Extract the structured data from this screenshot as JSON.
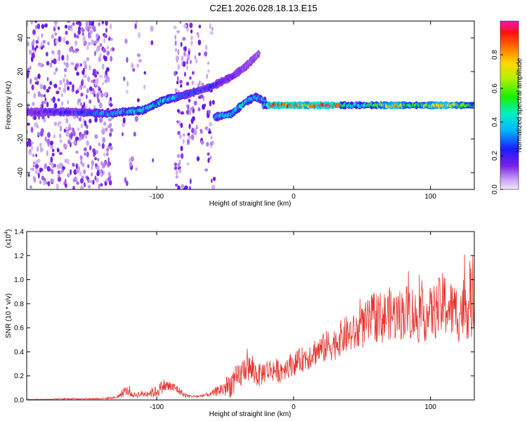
{
  "title": "C2E1.2026.028.18.13.E15",
  "colors": {
    "line": "#e8332d",
    "background": "#ffffff"
  },
  "chart_data": [
    {
      "type": "heatmap",
      "xlabel": "Height of straight line (km)",
      "ylabel": "Frequency (Hz)",
      "xlim": [
        -195,
        132
      ],
      "ylim": [
        -50,
        50
      ],
      "xticks": [
        -100,
        0,
        100
      ],
      "xtick_labels": [
        "-100",
        "0",
        "100"
      ],
      "yticks": [
        -40,
        -20,
        0,
        20,
        40
      ],
      "ytick_labels": [
        "-40",
        "-20",
        "0",
        "20",
        "40"
      ],
      "colorbar": {
        "label": "Normalized spectral amplitude",
        "range": [
          0,
          1
        ],
        "ticks": [
          0.0,
          0.2,
          0.4,
          0.6,
          0.8
        ],
        "tick_labels": [
          "0.0",
          "0.2",
          "0.4",
          "0.6",
          "0.8"
        ]
      },
      "noise_bands": [
        {
          "x": [
            -195,
            -132
          ],
          "density": 1.0
        },
        {
          "x": [
            -125,
            -108
          ],
          "density": 0.2
        },
        {
          "x": [
            -104,
            -100
          ],
          "density": 0.1
        },
        {
          "x": [
            -87,
            -73
          ],
          "density": 0.8
        },
        {
          "x": [
            -72,
            -58
          ],
          "density": 0.5
        }
      ],
      "ridge": [
        {
          "x": -195,
          "f": -4,
          "amp": 0.15
        },
        {
          "x": -160,
          "f": -4,
          "amp": 0.25
        },
        {
          "x": -135,
          "f": -5,
          "amp": 0.35
        },
        {
          "x": -125,
          "f": -4,
          "amp": 0.4
        },
        {
          "x": -110,
          "f": -3,
          "amp": 0.45
        },
        {
          "x": -95,
          "f": 3,
          "amp": 0.45
        },
        {
          "x": -80,
          "f": 6,
          "amp": 0.3
        },
        {
          "x": -60,
          "f": 11,
          "amp": 0.25
        },
        {
          "x": -55,
          "f": 13,
          "amp": 0.2
        },
        {
          "x": -45,
          "f": 17,
          "amp": 0.15
        },
        {
          "x": -35,
          "f": 23,
          "amp": 0.12
        },
        {
          "x": -25,
          "f": 31,
          "amp": 0.1
        }
      ],
      "ridge2": [
        {
          "x": -57,
          "f": -7,
          "amp": 0.4
        },
        {
          "x": -45,
          "f": -5,
          "amp": 0.45
        },
        {
          "x": -35,
          "f": 2,
          "amp": 0.45
        },
        {
          "x": -28,
          "f": 5,
          "amp": 0.4
        },
        {
          "x": -20,
          "f": 2,
          "amp": 0.4
        }
      ],
      "steady": [
        {
          "x": -22,
          "f": 0,
          "amp": 0.45
        },
        {
          "x": -20,
          "f": 0,
          "amp": 0.45
        },
        {
          "x": -18,
          "f": 0,
          "amp": 0.92
        },
        {
          "x": 0,
          "f": 0,
          "amp": 0.92
        },
        {
          "x": 10,
          "f": 0,
          "amp": 0.7
        },
        {
          "x": 15,
          "f": 0,
          "amp": 0.95
        },
        {
          "x": 33,
          "f": 0,
          "amp": 0.95
        },
        {
          "x": 35,
          "f": 0,
          "amp": 0.5
        },
        {
          "x": 50,
          "f": 0,
          "amp": 0.45
        },
        {
          "x": 75,
          "f": 0,
          "amp": 0.8
        },
        {
          "x": 85,
          "f": 0,
          "amp": 0.55
        },
        {
          "x": 110,
          "f": 0,
          "amp": 0.8
        },
        {
          "x": 132,
          "f": 0,
          "amp": 0.5
        }
      ]
    },
    {
      "type": "line",
      "xlabel": "Height of straight line (km)",
      "ylabel": "SNR (10 * v/v)",
      "y_multiplier": "(x10",
      "y_multiplier_exponent": "4",
      "xlim": [
        -195,
        132
      ],
      "ylim": [
        0,
        1.4
      ],
      "xticks": [
        -100,
        0,
        100
      ],
      "xtick_labels": [
        "-100",
        "0",
        "100"
      ],
      "yticks": [
        0.0,
        0.2,
        0.4,
        0.6,
        0.8,
        1.0,
        1.2,
        1.4
      ],
      "ytick_labels": [
        "0.0",
        "0.2",
        "0.4",
        "0.6",
        "0.8",
        "1.0",
        "1.2",
        "1.4"
      ],
      "series": [
        {
          "name": "SNR",
          "x": [
            -195,
            -180,
            -165,
            -150,
            -140,
            -130,
            -125,
            -122,
            -118,
            -110,
            -100,
            -95,
            -90,
            -85,
            -80,
            -75,
            -70,
            -60,
            -55,
            -50,
            -45,
            -40,
            -35,
            -30,
            -25,
            -20,
            -15,
            -10,
            -5,
            0,
            5,
            10,
            15,
            20,
            25,
            30,
            35,
            40,
            45,
            50,
            55,
            60,
            65,
            70,
            75,
            80,
            85,
            90,
            95,
            100,
            105,
            110,
            115,
            120,
            125,
            130,
            132
          ],
          "values": [
            0.005,
            0.005,
            0.01,
            0.01,
            0.012,
            0.02,
            0.05,
            0.08,
            0.04,
            0.05,
            0.07,
            0.12,
            0.11,
            0.09,
            0.04,
            0.03,
            0.03,
            0.05,
            0.08,
            0.1,
            0.14,
            0.18,
            0.28,
            0.24,
            0.2,
            0.25,
            0.25,
            0.24,
            0.28,
            0.3,
            0.33,
            0.36,
            0.4,
            0.42,
            0.45,
            0.47,
            0.52,
            0.55,
            0.55,
            0.6,
            0.65,
            0.7,
            0.68,
            0.72,
            0.7,
            0.72,
            0.75,
            0.68,
            0.7,
            0.72,
            0.75,
            0.8,
            0.75,
            0.72,
            0.78,
            0.8,
            0.85
          ],
          "noise_amplitude": [
            0.003,
            0.003,
            0.005,
            0.005,
            0.005,
            0.01,
            0.03,
            0.04,
            0.02,
            0.03,
            0.05,
            0.06,
            0.05,
            0.04,
            0.02,
            0.01,
            0.01,
            0.02,
            0.05,
            0.08,
            0.12,
            0.12,
            0.12,
            0.12,
            0.1,
            0.1,
            0.1,
            0.1,
            0.1,
            0.1,
            0.1,
            0.12,
            0.12,
            0.12,
            0.14,
            0.14,
            0.15,
            0.16,
            0.16,
            0.18,
            0.2,
            0.22,
            0.22,
            0.22,
            0.22,
            0.22,
            0.25,
            0.22,
            0.22,
            0.22,
            0.25,
            0.28,
            0.25,
            0.25,
            0.28,
            0.3,
            0.3
          ]
        }
      ]
    }
  ]
}
